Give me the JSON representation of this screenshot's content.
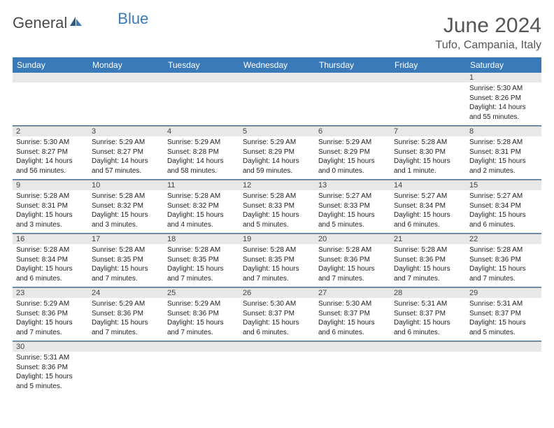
{
  "logo": {
    "general": "General",
    "blue": "Blue"
  },
  "title": "June 2024",
  "location": "Tufo, Campania, Italy",
  "day_headers": [
    "Sunday",
    "Monday",
    "Tuesday",
    "Wednesday",
    "Thursday",
    "Friday",
    "Saturday"
  ],
  "colors": {
    "header_bg": "#3a7ab8",
    "numrow_bg": "#e8e8e8",
    "border": "#4a7ab0",
    "text": "#222222",
    "title_text": "#555555"
  },
  "typography": {
    "title_fontsize": 30,
    "location_fontsize": 16,
    "header_fontsize": 12,
    "daynum_fontsize": 11,
    "cell_fontsize": 10
  },
  "weeks": [
    {
      "nums": [
        "",
        "",
        "",
        "",
        "",
        "",
        "1"
      ],
      "cells": [
        {
          "sunrise": "",
          "sunset": "",
          "daylight": ""
        },
        {
          "sunrise": "",
          "sunset": "",
          "daylight": ""
        },
        {
          "sunrise": "",
          "sunset": "",
          "daylight": ""
        },
        {
          "sunrise": "",
          "sunset": "",
          "daylight": ""
        },
        {
          "sunrise": "",
          "sunset": "",
          "daylight": ""
        },
        {
          "sunrise": "",
          "sunset": "",
          "daylight": ""
        },
        {
          "sunrise": "Sunrise: 5:30 AM",
          "sunset": "Sunset: 8:26 PM",
          "daylight": "Daylight: 14 hours and 55 minutes."
        }
      ]
    },
    {
      "nums": [
        "2",
        "3",
        "4",
        "5",
        "6",
        "7",
        "8"
      ],
      "cells": [
        {
          "sunrise": "Sunrise: 5:30 AM",
          "sunset": "Sunset: 8:27 PM",
          "daylight": "Daylight: 14 hours and 56 minutes."
        },
        {
          "sunrise": "Sunrise: 5:29 AM",
          "sunset": "Sunset: 8:27 PM",
          "daylight": "Daylight: 14 hours and 57 minutes."
        },
        {
          "sunrise": "Sunrise: 5:29 AM",
          "sunset": "Sunset: 8:28 PM",
          "daylight": "Daylight: 14 hours and 58 minutes."
        },
        {
          "sunrise": "Sunrise: 5:29 AM",
          "sunset": "Sunset: 8:29 PM",
          "daylight": "Daylight: 14 hours and 59 minutes."
        },
        {
          "sunrise": "Sunrise: 5:29 AM",
          "sunset": "Sunset: 8:29 PM",
          "daylight": "Daylight: 15 hours and 0 minutes."
        },
        {
          "sunrise": "Sunrise: 5:28 AM",
          "sunset": "Sunset: 8:30 PM",
          "daylight": "Daylight: 15 hours and 1 minute."
        },
        {
          "sunrise": "Sunrise: 5:28 AM",
          "sunset": "Sunset: 8:31 PM",
          "daylight": "Daylight: 15 hours and 2 minutes."
        }
      ]
    },
    {
      "nums": [
        "9",
        "10",
        "11",
        "12",
        "13",
        "14",
        "15"
      ],
      "cells": [
        {
          "sunrise": "Sunrise: 5:28 AM",
          "sunset": "Sunset: 8:31 PM",
          "daylight": "Daylight: 15 hours and 3 minutes."
        },
        {
          "sunrise": "Sunrise: 5:28 AM",
          "sunset": "Sunset: 8:32 PM",
          "daylight": "Daylight: 15 hours and 3 minutes."
        },
        {
          "sunrise": "Sunrise: 5:28 AM",
          "sunset": "Sunset: 8:32 PM",
          "daylight": "Daylight: 15 hours and 4 minutes."
        },
        {
          "sunrise": "Sunrise: 5:28 AM",
          "sunset": "Sunset: 8:33 PM",
          "daylight": "Daylight: 15 hours and 5 minutes."
        },
        {
          "sunrise": "Sunrise: 5:27 AM",
          "sunset": "Sunset: 8:33 PM",
          "daylight": "Daylight: 15 hours and 5 minutes."
        },
        {
          "sunrise": "Sunrise: 5:27 AM",
          "sunset": "Sunset: 8:34 PM",
          "daylight": "Daylight: 15 hours and 6 minutes."
        },
        {
          "sunrise": "Sunrise: 5:27 AM",
          "sunset": "Sunset: 8:34 PM",
          "daylight": "Daylight: 15 hours and 6 minutes."
        }
      ]
    },
    {
      "nums": [
        "16",
        "17",
        "18",
        "19",
        "20",
        "21",
        "22"
      ],
      "cells": [
        {
          "sunrise": "Sunrise: 5:28 AM",
          "sunset": "Sunset: 8:34 PM",
          "daylight": "Daylight: 15 hours and 6 minutes."
        },
        {
          "sunrise": "Sunrise: 5:28 AM",
          "sunset": "Sunset: 8:35 PM",
          "daylight": "Daylight: 15 hours and 7 minutes."
        },
        {
          "sunrise": "Sunrise: 5:28 AM",
          "sunset": "Sunset: 8:35 PM",
          "daylight": "Daylight: 15 hours and 7 minutes."
        },
        {
          "sunrise": "Sunrise: 5:28 AM",
          "sunset": "Sunset: 8:35 PM",
          "daylight": "Daylight: 15 hours and 7 minutes."
        },
        {
          "sunrise": "Sunrise: 5:28 AM",
          "sunset": "Sunset: 8:36 PM",
          "daylight": "Daylight: 15 hours and 7 minutes."
        },
        {
          "sunrise": "Sunrise: 5:28 AM",
          "sunset": "Sunset: 8:36 PM",
          "daylight": "Daylight: 15 hours and 7 minutes."
        },
        {
          "sunrise": "Sunrise: 5:28 AM",
          "sunset": "Sunset: 8:36 PM",
          "daylight": "Daylight: 15 hours and 7 minutes."
        }
      ]
    },
    {
      "nums": [
        "23",
        "24",
        "25",
        "26",
        "27",
        "28",
        "29"
      ],
      "cells": [
        {
          "sunrise": "Sunrise: 5:29 AM",
          "sunset": "Sunset: 8:36 PM",
          "daylight": "Daylight: 15 hours and 7 minutes."
        },
        {
          "sunrise": "Sunrise: 5:29 AM",
          "sunset": "Sunset: 8:36 PM",
          "daylight": "Daylight: 15 hours and 7 minutes."
        },
        {
          "sunrise": "Sunrise: 5:29 AM",
          "sunset": "Sunset: 8:36 PM",
          "daylight": "Daylight: 15 hours and 7 minutes."
        },
        {
          "sunrise": "Sunrise: 5:30 AM",
          "sunset": "Sunset: 8:37 PM",
          "daylight": "Daylight: 15 hours and 6 minutes."
        },
        {
          "sunrise": "Sunrise: 5:30 AM",
          "sunset": "Sunset: 8:37 PM",
          "daylight": "Daylight: 15 hours and 6 minutes."
        },
        {
          "sunrise": "Sunrise: 5:31 AM",
          "sunset": "Sunset: 8:37 PM",
          "daylight": "Daylight: 15 hours and 6 minutes."
        },
        {
          "sunrise": "Sunrise: 5:31 AM",
          "sunset": "Sunset: 8:37 PM",
          "daylight": "Daylight: 15 hours and 5 minutes."
        }
      ]
    },
    {
      "nums": [
        "30",
        "",
        "",
        "",
        "",
        "",
        ""
      ],
      "cells": [
        {
          "sunrise": "Sunrise: 5:31 AM",
          "sunset": "Sunset: 8:36 PM",
          "daylight": "Daylight: 15 hours and 5 minutes."
        },
        {
          "sunrise": "",
          "sunset": "",
          "daylight": ""
        },
        {
          "sunrise": "",
          "sunset": "",
          "daylight": ""
        },
        {
          "sunrise": "",
          "sunset": "",
          "daylight": ""
        },
        {
          "sunrise": "",
          "sunset": "",
          "daylight": ""
        },
        {
          "sunrise": "",
          "sunset": "",
          "daylight": ""
        },
        {
          "sunrise": "",
          "sunset": "",
          "daylight": ""
        }
      ]
    }
  ]
}
